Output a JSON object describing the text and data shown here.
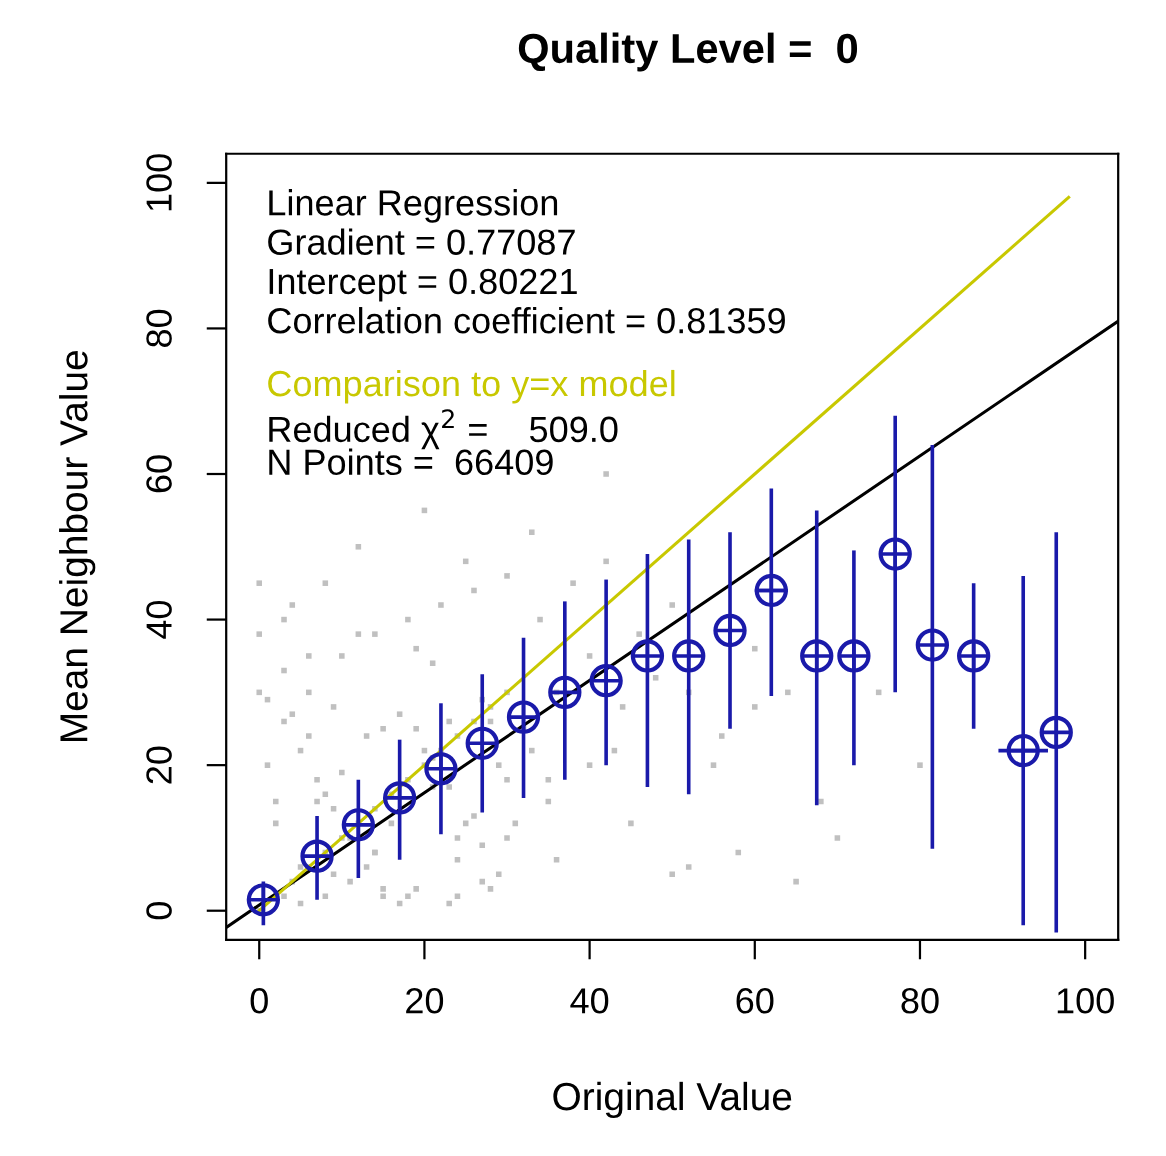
{
  "chart_data": {
    "type": "scatter",
    "title": "Quality Level =  0",
    "xlabel": "Original Value",
    "ylabel": "Mean Neighbour Value",
    "xlim": [
      -4,
      104
    ],
    "ylim": [
      -4,
      104
    ],
    "xticks": [
      0,
      20,
      40,
      60,
      80,
      100
    ],
    "yticks": [
      0,
      20,
      40,
      60,
      80,
      100
    ],
    "grid": false,
    "annotations": [
      "Gradient = 0.77087",
      "Intercept = 0.80221",
      "Correlation coefficient = 0.81359",
      "Reduced χ$^{2}$ =    509.0",
      "N Points =  66409"
    ],
    "series": [
      {
        "color": "#c0c0c0",
        "marker": "square",
        "x": [
          0,
          3,
          4,
          6,
          8,
          10,
          12,
          14,
          16,
          18,
          20,
          22,
          24,
          26,
          28,
          30,
          1,
          3,
          5,
          7,
          9,
          11,
          13,
          15,
          17,
          19,
          21,
          23,
          25,
          27,
          29,
          2,
          6,
          10,
          14,
          18,
          22,
          26,
          30,
          34,
          38,
          42,
          46,
          50,
          32,
          36,
          40,
          44,
          48,
          52,
          56,
          60,
          64,
          30,
          35,
          40,
          45,
          55,
          3,
          8,
          12,
          20,
          25,
          33,
          0,
          0,
          0,
          5,
          15,
          28,
          50,
          58,
          65,
          70,
          42,
          24,
          1,
          2,
          4,
          5,
          6,
          7,
          8,
          9,
          10,
          11,
          13,
          14,
          16,
          17,
          19,
          20,
          21,
          23,
          24,
          26,
          27,
          29,
          3,
          6,
          9,
          12,
          15,
          18,
          21,
          24,
          27,
          30,
          33,
          36,
          4,
          8,
          14,
          19,
          23,
          28,
          31,
          35,
          43,
          52,
          60,
          68,
          75,
          80
        ],
        "values": [
          0,
          2,
          4,
          6,
          8,
          10,
          12,
          14,
          16,
          18,
          20,
          22,
          24,
          26,
          28,
          30,
          29,
          26,
          22,
          18,
          14,
          10,
          6,
          3,
          1,
          25,
          21,
          17,
          12,
          9,
          5,
          15,
          30,
          35,
          38,
          40,
          42,
          44,
          46,
          40,
          45,
          48,
          38,
          42,
          25,
          30,
          35,
          28,
          32,
          30,
          24,
          36,
          30,
          10,
          15,
          20,
          12,
          20,
          40,
          45,
          50,
          55,
          48,
          52,
          30,
          45,
          38,
          1,
          2,
          3,
          5,
          8,
          4,
          10,
          60,
          2,
          20,
          12,
          27,
          6,
          24,
          15,
          2,
          28,
          19,
          4,
          24,
          8,
          12,
          27,
          3,
          22,
          17,
          26,
          7,
          13,
          29,
          20,
          33,
          35,
          5,
          38,
          25,
          2,
          34,
          10,
          4,
          18,
          22,
          7,
          42,
          16,
          8,
          36,
          1,
          26,
          12,
          18,
          22,
          6,
          28,
          15,
          30,
          20
        ]
      },
      {
        "type": "line",
        "name": "Linear Regression",
        "color": "#000000",
        "x": [
          -4,
          104
        ],
        "values": [
          -2.3,
          81
        ]
      },
      {
        "type": "line",
        "name": "Comparison to y=x model",
        "color": "#c8c800",
        "x": [
          0,
          98
        ],
        "values": [
          0,
          98
        ]
      },
      {
        "type": "scatter",
        "color": "#1a1aaa",
        "marker": "circle",
        "x": [
          0.5,
          7,
          12,
          17,
          22,
          27,
          32,
          37,
          42,
          47,
          52,
          57,
          62,
          67.5,
          72,
          77,
          81.5,
          86.5,
          92.5,
          96.5
        ],
        "values": [
          1.5,
          7.5,
          11.8,
          15.5,
          19.5,
          23,
          26.6,
          30,
          31.6,
          35,
          35,
          38.5,
          44,
          35,
          35,
          49,
          36.5,
          35,
          22,
          24.5
        ],
        "errors": [
          [
            -2,
            4
          ],
          [
            1.5,
            13
          ],
          [
            4.5,
            18
          ],
          [
            7,
            23.5
          ],
          [
            10.5,
            28.5
          ],
          [
            13.5,
            32.5
          ],
          [
            15.5,
            37.5
          ],
          [
            18,
            42.5
          ],
          [
            20,
            45.5
          ],
          [
            17,
            49
          ],
          [
            16,
            51
          ],
          [
            25,
            52
          ],
          [
            29.5,
            58
          ],
          [
            14.5,
            55
          ],
          [
            20,
            49.5
          ],
          [
            30,
            68
          ],
          [
            8.5,
            64
          ],
          [
            25,
            45
          ],
          [
            -2,
            46
          ],
          [
            -3,
            52
          ]
        ],
        "xerrors": [
          null,
          null,
          null,
          null,
          null,
          null,
          null,
          null,
          null,
          null,
          null,
          null,
          [
            60,
            64
          ],
          null,
          null,
          null,
          null,
          null,
          [
            89.5,
            95.5
          ],
          null
        ]
      }
    ]
  }
}
